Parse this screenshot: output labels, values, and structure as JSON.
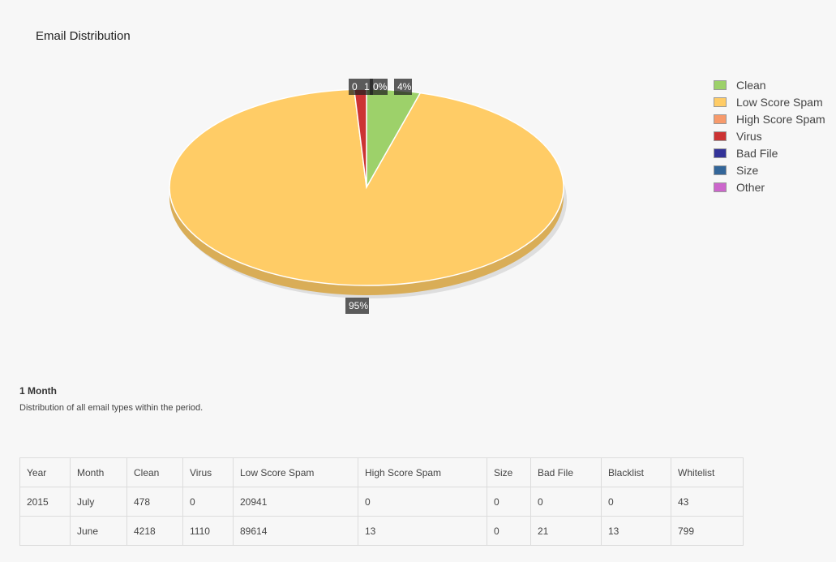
{
  "chart_data": {
    "type": "pie",
    "title": "Email Distribution",
    "categories": [
      "Clean",
      "Low Score Spam",
      "High Score Spam",
      "Virus",
      "Bad File",
      "Size",
      "Other"
    ],
    "values": [
      4.4,
      94.6,
      0.0,
      1.0,
      0.0,
      0.0,
      0.0
    ],
    "colors": [
      "#9dd16a",
      "#ffcc66",
      "#f79a6b",
      "#cc3333",
      "#333399",
      "#336699",
      "#cc66cc"
    ],
    "labels": [
      {
        "category": "Clean",
        "text": "4%"
      },
      {
        "category": "Low Score Spam",
        "text": "95%"
      },
      {
        "category": "High Score Spam",
        "text": "0"
      },
      {
        "category": "Virus",
        "text": "1"
      },
      {
        "category": "Bad File",
        "text": "0%"
      }
    ],
    "legend_position": "right",
    "style": "3d"
  },
  "legend": {
    "items": [
      {
        "label": "Clean",
        "color": "#9dd16a"
      },
      {
        "label": "Low Score Spam",
        "color": "#ffcc66"
      },
      {
        "label": "High Score Spam",
        "color": "#f79a6b"
      },
      {
        "label": "Virus",
        "color": "#cc3333"
      },
      {
        "label": "Bad File",
        "color": "#333399"
      },
      {
        "label": "Size",
        "color": "#336699"
      },
      {
        "label": "Other",
        "color": "#cc66cc"
      }
    ]
  },
  "period": {
    "title": "1 Month",
    "description": "Distribution of all email types within the period."
  },
  "table": {
    "headers": [
      "Year",
      "Month",
      "Clean",
      "Virus",
      "Low Score Spam",
      "High Score Spam",
      "Size",
      "Bad File",
      "Blacklist",
      "Whitelist"
    ],
    "rows": [
      [
        "2015",
        "July",
        "478",
        "0",
        "20941",
        "0",
        "0",
        "0",
        "0",
        "43"
      ],
      [
        "",
        "June",
        "4218",
        "1110",
        "89614",
        "13",
        "0",
        "21",
        "13",
        "799"
      ]
    ]
  }
}
